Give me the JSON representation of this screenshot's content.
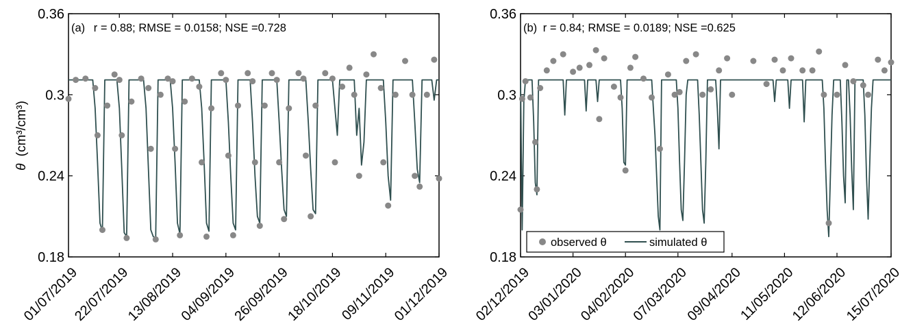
{
  "figure": {
    "ylabel_prefix": "θ",
    "ylabel_unit": "(cm³/cm³)"
  },
  "legend": {
    "observed": "observed θ",
    "simulated": "simulated θ"
  },
  "colors": {
    "observed": "#888888",
    "simulated": "#2f4f4f"
  },
  "chart_data": [
    {
      "panel": "(a)",
      "type": "scatter+line",
      "annotation": "r = 0.88; RMSE = 0.0158; NSE =0.728",
      "ylim": [
        0.18,
        0.36
      ],
      "yticks": [
        "0.18",
        "0.24",
        "0.3",
        "0.36"
      ],
      "xlim": [
        "2019-07-01",
        "2019-12-01"
      ],
      "xticks": [
        "01/07/2019",
        "22/07/2019",
        "13/08/2019",
        "04/09/2019",
        "26/09/2019",
        "18/10/2019",
        "09/11/2019",
        "01/12/2019"
      ],
      "series": [
        {
          "name": "observed θ",
          "kind": "points",
          "x": [
            "2019-07-01",
            "2019-07-04",
            "2019-07-08",
            "2019-07-12",
            "2019-07-13",
            "2019-07-15",
            "2019-07-17",
            "2019-07-20",
            "2019-07-22",
            "2019-07-23",
            "2019-07-25",
            "2019-07-27",
            "2019-07-31",
            "2019-08-03",
            "2019-08-04",
            "2019-08-06",
            "2019-08-08",
            "2019-08-11",
            "2019-08-13",
            "2019-08-14",
            "2019-08-16",
            "2019-08-18",
            "2019-08-21",
            "2019-08-24",
            "2019-08-25",
            "2019-08-27",
            "2019-08-29",
            "2019-09-02",
            "2019-09-04",
            "2019-09-05",
            "2019-09-07",
            "2019-09-09",
            "2019-09-13",
            "2019-09-15",
            "2019-09-16",
            "2019-09-18",
            "2019-09-20",
            "2019-09-23",
            "2019-09-25",
            "2019-09-26",
            "2019-09-28",
            "2019-09-30",
            "2019-10-04",
            "2019-10-06",
            "2019-10-07",
            "2019-10-09",
            "2019-10-11",
            "2019-10-15",
            "2019-10-18",
            "2019-10-19",
            "2019-10-22",
            "2019-10-25",
            "2019-10-27",
            "2019-10-29",
            "2019-11-01",
            "2019-11-04",
            "2019-11-07",
            "2019-11-08",
            "2019-11-10",
            "2019-11-13",
            "2019-11-17",
            "2019-11-20",
            "2019-11-21",
            "2019-11-23",
            "2019-11-26",
            "2019-11-29",
            "2019-12-01"
          ],
          "y": [
            0.297,
            0.311,
            0.312,
            0.305,
            0.27,
            0.2,
            0.292,
            0.315,
            0.311,
            0.27,
            0.194,
            0.295,
            0.312,
            0.305,
            0.26,
            0.193,
            0.3,
            0.312,
            0.31,
            0.26,
            0.196,
            0.295,
            0.312,
            0.306,
            0.25,
            0.195,
            0.29,
            0.316,
            0.311,
            0.255,
            0.196,
            0.292,
            0.316,
            0.31,
            0.25,
            0.203,
            0.292,
            0.316,
            0.311,
            0.25,
            0.208,
            0.29,
            0.316,
            0.312,
            0.255,
            0.21,
            0.292,
            0.316,
            0.312,
            0.25,
            0.306,
            0.32,
            0.3,
            0.24,
            0.315,
            0.33,
            0.305,
            0.25,
            0.218,
            0.3,
            0.325,
            0.3,
            0.24,
            0.232,
            0.3,
            0.326,
            0.238
          ]
        },
        {
          "name": "simulated θ",
          "kind": "line",
          "x": [
            "2019-07-01",
            "2019-07-11",
            "2019-07-12",
            "2019-07-13",
            "2019-07-14",
            "2019-07-15",
            "2019-07-16",
            "2019-07-21",
            "2019-07-22",
            "2019-07-23",
            "2019-07-24",
            "2019-07-25",
            "2019-07-26",
            "2019-08-01",
            "2019-08-02",
            "2019-08-03",
            "2019-08-04",
            "2019-08-05",
            "2019-08-06",
            "2019-08-07",
            "2019-08-12",
            "2019-08-13",
            "2019-08-14",
            "2019-08-15",
            "2019-08-16",
            "2019-08-17",
            "2019-08-24",
            "2019-08-25",
            "2019-08-26",
            "2019-08-27",
            "2019-08-28",
            "2019-08-29",
            "2019-09-04",
            "2019-09-05",
            "2019-09-06",
            "2019-09-07",
            "2019-09-08",
            "2019-09-09",
            "2019-09-14",
            "2019-09-15",
            "2019-09-16",
            "2019-09-17",
            "2019-09-18",
            "2019-09-19",
            "2019-09-25",
            "2019-09-26",
            "2019-09-27",
            "2019-09-28",
            "2019-09-29",
            "2019-09-30",
            "2019-10-07",
            "2019-10-08",
            "2019-10-09",
            "2019-10-10",
            "2019-10-11",
            "2019-10-12",
            "2019-10-18",
            "2019-10-19",
            "2019-10-20",
            "2019-10-21",
            "2019-10-27",
            "2019-10-28",
            "2019-10-29",
            "2019-10-30",
            "2019-10-31",
            "2019-11-01",
            "2019-11-08",
            "2019-11-09",
            "2019-11-10",
            "2019-11-11",
            "2019-11-12",
            "2019-11-20",
            "2019-11-21",
            "2019-11-22",
            "2019-11-23",
            "2019-11-24",
            "2019-11-28",
            "2019-11-29",
            "2019-11-30",
            "2019-12-01"
          ],
          "y": [
            0.311,
            0.311,
            0.29,
            0.25,
            0.205,
            0.199,
            0.311,
            0.311,
            0.29,
            0.245,
            0.198,
            0.195,
            0.311,
            0.311,
            0.29,
            0.245,
            0.2,
            0.195,
            0.194,
            0.311,
            0.311,
            0.29,
            0.25,
            0.205,
            0.197,
            0.311,
            0.311,
            0.29,
            0.25,
            0.205,
            0.199,
            0.311,
            0.311,
            0.28,
            0.24,
            0.205,
            0.2,
            0.311,
            0.311,
            0.28,
            0.24,
            0.21,
            0.205,
            0.311,
            0.311,
            0.28,
            0.245,
            0.215,
            0.21,
            0.311,
            0.311,
            0.28,
            0.245,
            0.215,
            0.212,
            0.311,
            0.311,
            0.29,
            0.27,
            0.311,
            0.311,
            0.27,
            0.29,
            0.248,
            0.265,
            0.311,
            0.311,
            0.28,
            0.24,
            0.222,
            0.311,
            0.311,
            0.28,
            0.245,
            0.235,
            0.311,
            0.311,
            0.296,
            0.311,
            0.311
          ]
        }
      ]
    },
    {
      "panel": "(b)",
      "type": "scatter+line",
      "annotation": "r = 0.84; RMSE = 0.0189; NSE =0.625",
      "ylim": [
        0.18,
        0.36
      ],
      "yticks": [
        "0.18",
        "0.24",
        "0.3",
        "0.36"
      ],
      "xlim": [
        "2019-12-02",
        "2020-07-15"
      ],
      "xticks": [
        "02/12/2019",
        "03/01/2020",
        "04/02/2020",
        "07/03/2020",
        "09/04/2020",
        "11/05/2020",
        "12/06/2020",
        "15/07/2020"
      ],
      "series": [
        {
          "name": "observed θ",
          "kind": "points",
          "x": [
            "2019-12-02",
            "2019-12-03",
            "2019-12-05",
            "2019-12-08",
            "2019-12-11",
            "2019-12-12",
            "2019-12-14",
            "2019-12-18",
            "2019-12-22",
            "2019-12-28",
            "2020-01-03",
            "2020-01-07",
            "2020-01-13",
            "2020-01-17",
            "2020-01-19",
            "2020-01-22",
            "2020-01-28",
            "2020-02-01",
            "2020-02-04",
            "2020-02-07",
            "2020-02-10",
            "2020-02-15",
            "2020-02-20",
            "2020-02-25",
            "2020-03-01",
            "2020-03-05",
            "2020-03-08",
            "2020-03-12",
            "2020-03-18",
            "2020-03-22",
            "2020-03-27",
            "2020-04-01",
            "2020-04-06",
            "2020-04-09",
            "2020-04-22",
            "2020-04-30",
            "2020-05-05",
            "2020-05-10",
            "2020-05-15",
            "2020-05-22",
            "2020-05-28",
            "2020-06-01",
            "2020-06-04",
            "2020-06-07",
            "2020-06-12",
            "2020-06-17",
            "2020-06-22",
            "2020-06-28",
            "2020-07-01",
            "2020-07-07",
            "2020-07-11",
            "2020-07-15"
          ],
          "y": [
            0.215,
            0.297,
            0.31,
            0.298,
            0.265,
            0.23,
            0.305,
            0.318,
            0.325,
            0.33,
            0.317,
            0.32,
            0.322,
            0.333,
            0.282,
            0.327,
            0.306,
            0.298,
            0.244,
            0.32,
            0.328,
            0.312,
            0.298,
            0.26,
            0.315,
            0.3,
            0.302,
            0.325,
            0.33,
            0.3,
            0.304,
            0.318,
            0.327,
            0.3,
            0.325,
            0.308,
            0.326,
            0.318,
            0.327,
            0.318,
            0.318,
            0.332,
            0.3,
            0.205,
            0.3,
            0.322,
            0.31,
            0.307,
            0.3,
            0.326,
            0.318,
            0.324
          ]
        },
        {
          "name": "simulated θ",
          "kind": "line",
          "x": [
            "2019-12-02",
            "2019-12-03",
            "2019-12-04",
            "2019-12-05",
            "2019-12-06",
            "2019-12-09",
            "2019-12-10",
            "2019-12-11",
            "2019-12-12",
            "2019-12-13",
            "2019-12-28",
            "2019-12-29",
            "2019-12-30",
            "2020-01-10",
            "2020-01-11",
            "2020-01-12",
            "2020-01-17",
            "2020-01-18",
            "2020-01-19",
            "2020-02-01",
            "2020-02-02",
            "2020-02-03",
            "2020-02-04",
            "2020-02-05",
            "2020-02-20",
            "2020-02-21",
            "2020-02-22",
            "2020-02-23",
            "2020-02-24",
            "2020-02-25",
            "2020-02-26",
            "2020-03-06",
            "2020-03-07",
            "2020-03-08",
            "2020-03-09",
            "2020-03-10",
            "2020-03-11",
            "2020-03-12",
            "2020-03-13",
            "2020-03-19",
            "2020-03-20",
            "2020-03-21",
            "2020-03-22",
            "2020-03-23",
            "2020-03-24",
            "2020-03-25",
            "2020-03-30",
            "2020-03-31",
            "2020-04-01",
            "2020-04-02",
            "2020-05-04",
            "2020-05-05",
            "2020-05-06",
            "2020-05-13",
            "2020-05-14",
            "2020-05-15",
            "2020-05-22",
            "2020-05-23",
            "2020-05-24",
            "2020-06-03",
            "2020-06-04",
            "2020-06-05",
            "2020-06-06",
            "2020-06-07",
            "2020-06-08",
            "2020-06-09",
            "2020-06-10",
            "2020-06-14",
            "2020-06-15",
            "2020-06-16",
            "2020-06-17",
            "2020-06-18",
            "2020-06-19",
            "2020-06-20",
            "2020-06-21",
            "2020-06-22",
            "2020-06-23",
            "2020-06-28",
            "2020-06-29",
            "2020-06-30",
            "2020-07-01",
            "2020-07-02",
            "2020-07-03",
            "2020-07-04",
            "2020-07-05",
            "2020-07-15"
          ],
          "y": [
            0.311,
            0.2,
            0.295,
            0.311,
            0.311,
            0.311,
            0.28,
            0.235,
            0.226,
            0.311,
            0.311,
            0.285,
            0.311,
            0.311,
            0.288,
            0.311,
            0.311,
            0.295,
            0.311,
            0.311,
            0.29,
            0.25,
            0.248,
            0.311,
            0.311,
            0.29,
            0.27,
            0.24,
            0.21,
            0.2,
            0.311,
            0.311,
            0.29,
            0.25,
            0.215,
            0.207,
            0.25,
            0.3,
            0.311,
            0.311,
            0.285,
            0.25,
            0.215,
            0.205,
            0.25,
            0.311,
            0.311,
            0.29,
            0.26,
            0.311,
            0.311,
            0.295,
            0.311,
            0.311,
            0.29,
            0.311,
            0.311,
            0.28,
            0.311,
            0.311,
            0.29,
            0.25,
            0.215,
            0.195,
            0.24,
            0.285,
            0.311,
            0.311,
            0.28,
            0.24,
            0.22,
            0.311,
            0.311,
            0.285,
            0.245,
            0.215,
            0.311,
            0.311,
            0.285,
            0.24,
            0.208,
            0.25,
            0.29,
            0.311,
            0.311,
            0.311
          ]
        }
      ]
    }
  ]
}
